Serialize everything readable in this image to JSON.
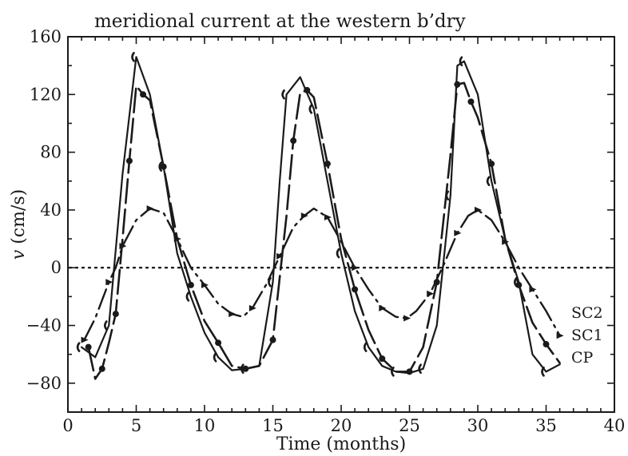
{
  "chart_data": {
    "type": "line",
    "title": "meridional current at the western b’dry",
    "xlabel": "Time (months)",
    "ylabel_symbol": "v",
    "ylabel_unit": " (cm/s)",
    "xlim": [
      0,
      40
    ],
    "ylim": [
      -100,
      160
    ],
    "xticks": [
      0,
      5,
      10,
      15,
      20,
      25,
      30,
      35,
      40
    ],
    "yticks": [
      -80,
      -40,
      0,
      40,
      80,
      120,
      160
    ],
    "reference_line": {
      "y": 0,
      "style": "dotted"
    },
    "series": [
      {
        "name": "SC2",
        "style": "dash-dot with arrow markers",
        "x": [
          1.2,
          2,
          3,
          3.5,
          4,
          5,
          6,
          7,
          8,
          9,
          10,
          11,
          12,
          12.8,
          13.5,
          14.5,
          15.5,
          16.5,
          17.3,
          18,
          19,
          20,
          21,
          22,
          23,
          24,
          24.8,
          25.5,
          26.5,
          27.5,
          28.5,
          29.3,
          30,
          31,
          32,
          33,
          34,
          35,
          36
        ],
        "values": [
          -50,
          -35,
          -10,
          0,
          15,
          33,
          41,
          38,
          20,
          0,
          -12,
          -25,
          -32,
          -34,
          -28,
          -12,
          8,
          28,
          36,
          41,
          35,
          18,
          0,
          -15,
          -28,
          -34,
          -35,
          -30,
          -18,
          2,
          24,
          36,
          40,
          33,
          18,
          0,
          -15,
          -30,
          -47
        ]
      },
      {
        "name": "SC1",
        "style": "long dash with dot markers",
        "x": [
          1.5,
          2,
          2.5,
          3,
          3.5,
          4,
          4.5,
          5,
          5.5,
          6,
          7,
          8,
          9,
          10,
          11,
          12,
          13,
          14,
          15,
          16,
          16.5,
          17,
          17.5,
          18,
          19,
          20,
          21,
          22,
          23,
          24,
          25,
          26,
          27,
          28,
          28.5,
          29,
          29.5,
          30,
          31,
          32,
          33,
          34,
          35,
          36
        ],
        "values": [
          -55,
          -77,
          -70,
          -52,
          -32,
          20,
          74,
          126,
          120,
          116,
          70,
          20,
          -12,
          -37,
          -52,
          -68,
          -70,
          -68,
          -50,
          36,
          88,
          121,
          123,
          118,
          72,
          20,
          -15,
          -43,
          -63,
          -72,
          -72,
          -55,
          -10,
          78,
          127,
          128,
          115,
          104,
          72,
          20,
          -12,
          -38,
          -53,
          -66
        ]
      },
      {
        "name": "CP",
        "style": "solid with hooks",
        "x": [
          1,
          2,
          3,
          4,
          5,
          6,
          7,
          8,
          9,
          10,
          11,
          12,
          13,
          14,
          15,
          15.5,
          16,
          17,
          18,
          19,
          20,
          21,
          22,
          23,
          24,
          25,
          26,
          27,
          28,
          28.5,
          29,
          30,
          31,
          32,
          33,
          34,
          35,
          36
        ],
        "values": [
          -55,
          -62,
          -40,
          65,
          146,
          120,
          70,
          10,
          -20,
          -45,
          -62,
          -71,
          -70,
          -68,
          -10,
          60,
          120,
          132,
          110,
          60,
          10,
          -30,
          -55,
          -68,
          -72,
          -73,
          -70,
          -40,
          50,
          140,
          143,
          120,
          60,
          20,
          -10,
          -60,
          -72,
          -67
        ]
      }
    ],
    "legend": {
      "placement": "right, at series ends",
      "entries": [
        "SC2",
        "SC1",
        "CP"
      ]
    },
    "grid": false
  }
}
